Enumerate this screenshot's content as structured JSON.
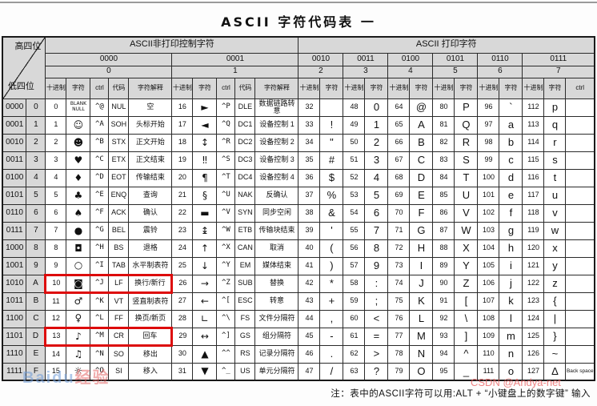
{
  "title": "ASCII  字符代码表  一",
  "header": {
    "high_label": "高四位",
    "low_label": "低四位",
    "nonprint_label": "ASCII非打印控制字符",
    "print_label": "ASCII 打印字符",
    "group_binary": [
      "0000",
      "0001",
      "0010",
      "0011",
      "0100",
      "0101",
      "0110",
      "0111"
    ],
    "group_hex": [
      "0",
      "1",
      "2",
      "3",
      "4",
      "5",
      "6",
      "7"
    ],
    "group_spans": [
      5,
      5,
      2,
      2,
      2,
      2,
      2,
      3
    ],
    "subcols_control": [
      "十进制",
      "字符",
      "ctrl",
      "代码",
      "字符解释"
    ],
    "subcols_print": [
      "十进制",
      "字符"
    ],
    "subcols_print_last": [
      "十进制",
      "字符",
      "ctrl"
    ]
  },
  "table": {
    "highlight_rows": [
      10,
      13
    ],
    "highlight_color": "#dd0b0b",
    "rows": [
      [
        "0000",
        "0",
        "0",
        "BLANK NULL",
        "^@",
        "NUL",
        "空",
        "16",
        "►",
        "^P",
        "DLE",
        "数据链路转意",
        "32",
        "",
        "48",
        "0",
        "64",
        "@",
        "80",
        "P",
        "96",
        "`",
        "112",
        "p",
        ""
      ],
      [
        "0001",
        "1",
        "1",
        "☺",
        "^A",
        "SOH",
        "头标开始",
        "17",
        "◄",
        "^Q",
        "DC1",
        "设备控制 1",
        "33",
        "!",
        "49",
        "1",
        "65",
        "A",
        "81",
        "Q",
        "97",
        "a",
        "113",
        "q",
        ""
      ],
      [
        "0010",
        "2",
        "2",
        "☻",
        "^B",
        "STX",
        "正文开始",
        "18",
        "↕",
        "^R",
        "DC2",
        "设备控制 2",
        "34",
        "\"",
        "50",
        "2",
        "66",
        "B",
        "82",
        "R",
        "98",
        "b",
        "114",
        "r",
        ""
      ],
      [
        "0011",
        "3",
        "3",
        "♥",
        "^C",
        "ETX",
        "正文结束",
        "19",
        "‼",
        "^S",
        "DC3",
        "设备控制 3",
        "35",
        "#",
        "51",
        "3",
        "67",
        "C",
        "83",
        "S",
        "99",
        "c",
        "115",
        "s",
        ""
      ],
      [
        "0100",
        "4",
        "4",
        "♦",
        "^D",
        "EOT",
        "传输结束",
        "20",
        "¶",
        "^T",
        "DC4",
        "设备控制 4",
        "36",
        "$",
        "52",
        "4",
        "68",
        "D",
        "84",
        "T",
        "100",
        "d",
        "116",
        "t",
        ""
      ],
      [
        "0101",
        "5",
        "5",
        "♣",
        "^E",
        "ENQ",
        "查询",
        "21",
        "§",
        "^U",
        "NAK",
        "反确认",
        "37",
        "%",
        "53",
        "5",
        "69",
        "E",
        "85",
        "U",
        "101",
        "e",
        "117",
        "u",
        ""
      ],
      [
        "0110",
        "6",
        "6",
        "♠",
        "^F",
        "ACK",
        "确认",
        "22",
        "▬",
        "^V",
        "SYN",
        "同步空闲",
        "38",
        "&",
        "54",
        "6",
        "70",
        "F",
        "86",
        "V",
        "102",
        "f",
        "118",
        "v",
        ""
      ],
      [
        "0111",
        "7",
        "7",
        "●",
        "^G",
        "BEL",
        "震铃",
        "23",
        "↨",
        "^W",
        "ETB",
        "传输块结束",
        "39",
        "'",
        "55",
        "7",
        "71",
        "G",
        "87",
        "W",
        "103",
        "g",
        "119",
        "w",
        ""
      ],
      [
        "1000",
        "8",
        "8",
        "◘",
        "^H",
        "BS",
        "退格",
        "24",
        "↑",
        "^X",
        "CAN",
        "取消",
        "40",
        "(",
        "56",
        "8",
        "72",
        "H",
        "88",
        "X",
        "104",
        "h",
        "120",
        "x",
        ""
      ],
      [
        "1001",
        "9",
        "9",
        "○",
        "^I",
        "TAB",
        "水平制表符",
        "25",
        "↓",
        "^Y",
        "EM",
        "媒体结束",
        "41",
        ")",
        "57",
        "9",
        "73",
        "I",
        "89",
        "Y",
        "105",
        "i",
        "121",
        "y",
        ""
      ],
      [
        "1010",
        "A",
        "10",
        "◙",
        "^J",
        "LF",
        "换行/新行",
        "26",
        "→",
        "^Z",
        "SUB",
        "替换",
        "42",
        "*",
        "58",
        ":",
        "74",
        "J",
        "90",
        "Z",
        "106",
        "j",
        "122",
        "z",
        ""
      ],
      [
        "1011",
        "B",
        "11",
        "♂",
        "^K",
        "VT",
        "竖直制表符",
        "27",
        "←",
        "^[",
        "ESC",
        "转意",
        "43",
        "+",
        "59",
        ";",
        "75",
        "K",
        "91",
        "[",
        "107",
        "k",
        "123",
        "{",
        ""
      ],
      [
        "1100",
        "C",
        "12",
        "♀",
        "^L",
        "FF",
        "换页/新页",
        "28",
        "∟",
        "^\\",
        "FS",
        "文件分隔符",
        "44",
        ",",
        "60",
        "<",
        "76",
        "L",
        "92",
        "\\",
        "108",
        "l",
        "124",
        "|",
        ""
      ],
      [
        "1101",
        "D",
        "13",
        "♪",
        "^M",
        "CR",
        "回车",
        "29",
        "↔",
        "^]",
        "GS",
        "组分隔符",
        "45",
        "-",
        "61",
        "=",
        "77",
        "M",
        "93",
        "]",
        "109",
        "m",
        "125",
        "}",
        ""
      ],
      [
        "1110",
        "E",
        "14",
        "♫",
        "^N",
        "SO",
        "移出",
        "30",
        "▲",
        "^^",
        "RS",
        "记录分隔符",
        "46",
        ".",
        "62",
        ">",
        "78",
        "N",
        "94",
        "^",
        "110",
        "n",
        "126",
        "~",
        ""
      ],
      [
        "1111",
        "F",
        "15",
        "☼",
        "^O",
        "SI",
        "移入",
        "31",
        "▼",
        "^_",
        "US",
        "单元分隔符",
        "47",
        "/",
        "63",
        "?",
        "79",
        "O",
        "95",
        "_",
        "111",
        "o",
        "127",
        "Δ",
        "Back space"
      ]
    ]
  },
  "note": "注：表中的ASCII字符可以用:ALT + “小键盘上的数字键” 输入",
  "watermark_left_1": "Baidu",
  "watermark_left_2": "经验",
  "watermark_right": "CSDN @Andya-net"
}
